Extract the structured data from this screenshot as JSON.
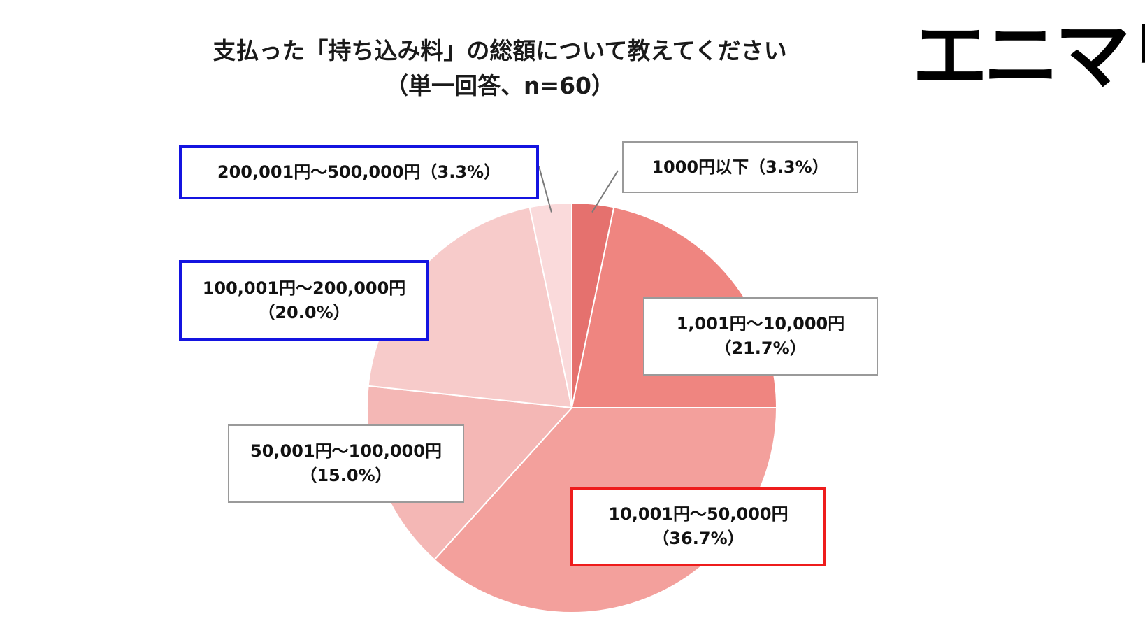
{
  "title": {
    "line1": "支払った「持ち込み料」の総額について教えてください",
    "line2": "（単一回答、n=60）"
  },
  "logo": {
    "text": "エニマリ"
  },
  "colors": {
    "slices": [
      "#e5716e",
      "#ef8580",
      "#f3a09c",
      "#f4b7b5",
      "#f7cbca",
      "#fadadb"
    ],
    "border_blue": "#1414e0",
    "border_red": "#ee1c1c",
    "border_plain": "#9a9a9a"
  },
  "chart_data": {
    "type": "pie",
    "title": "支払った「持ち込み料」の総額について教えてください（単一回答、n=60）",
    "categories": [
      "1000円以下",
      "1,001円〜10,000円",
      "10,001円〜50,000円",
      "50,001円〜100,000円",
      "100,001円〜200,000円",
      "200,001円〜500,000円"
    ],
    "values": [
      3.3,
      21.7,
      36.7,
      15.0,
      20.0,
      3.3
    ],
    "labels": [
      {
        "line1": "1000円以下（3.3%）",
        "line2": ""
      },
      {
        "line1": "1,001円〜10,000円",
        "line2": "（21.7%）"
      },
      {
        "line1": "10,001円〜50,000円",
        "line2": "（36.7%）"
      },
      {
        "line1": "50,001円〜100,000円",
        "line2": "（15.0%）"
      },
      {
        "line1": "100,001円〜200,000円",
        "line2": "（20.0%）"
      },
      {
        "line1": "200,001円〜500,000円（3.3%）",
        "line2": ""
      }
    ],
    "highlight": [
      "none",
      "none",
      "red",
      "none",
      "blue",
      "blue"
    ],
    "start_angle": "12 o'clock",
    "direction": "clockwise"
  }
}
